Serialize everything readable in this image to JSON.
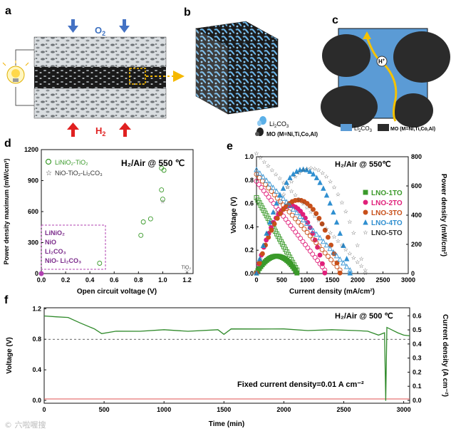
{
  "panels": {
    "a": {
      "label": "a",
      "o2_label": "O",
      "o2_sub": "2",
      "h2_label": "H",
      "h2_sub": "2"
    },
    "b": {
      "label": "b",
      "legend_li2co3": "Li",
      "legend_li2co3_sub1": "2",
      "legend_li2co3_mid": "CO",
      "legend_li2co3_sub2": "3",
      "legend_mo": "MO (M=Ni,Ti,Co,Al)"
    },
    "c": {
      "label": "c",
      "proton": "H",
      "proton_sup": "+",
      "legend_li2co3": "Li",
      "legend_li2co3_sub1": "2",
      "legend_li2co3_mid": "CO",
      "legend_li2co3_sub2": "3",
      "legend_mo": "MO (M=Ni,Ti,Co,Al)"
    },
    "d": {
      "label": "d"
    },
    "e": {
      "label": "e"
    },
    "f": {
      "label": "f"
    }
  },
  "colors": {
    "li2co3_blue": "#5b9bd5",
    "mo_dark": "#2b2b2b",
    "arrow_blue": "#4472c4",
    "arrow_red": "#e02020",
    "highlight_yellow": "#f5b800",
    "green": "#3a9a2a",
    "magenta": "#e0207a",
    "orange_brown": "#c8501a",
    "teal_blue": "#2f8fd0",
    "purple_box": "#b040b0"
  },
  "watermark": "© 六啦喔搜",
  "chart_data": [
    {
      "id": "d",
      "type": "scatter",
      "xlabel": "Open circuit voltage (V)",
      "ylabel": "Power density maximum (mW/cm²)",
      "annotation": "H₂/Air @ 550 ℃",
      "xlim": [
        0.0,
        1.25
      ],
      "ylim": [
        0,
        1200
      ],
      "xticks": [
        "0.0",
        "0.2",
        "0.4",
        "0.6",
        "0.8",
        "1.0",
        "1.2"
      ],
      "yticks": [
        "0",
        "300",
        "600",
        "900",
        "1200"
      ],
      "series": [
        {
          "name": "LiNiO₂-TiO₂",
          "marker": "circle",
          "color": "#3a9a2a",
          "points": [
            [
              0.48,
              100
            ],
            [
              0.82,
              370
            ],
            [
              0.84,
              500
            ],
            [
              0.9,
              530
            ],
            [
              0.99,
              810
            ],
            [
              0.99,
              1020
            ],
            [
              1.01,
              1000
            ],
            [
              1.0,
              720
            ]
          ]
        },
        {
          "name": "NiO-TiO₂-Li₂CO₃",
          "marker": "star",
          "color": "#333333",
          "points": [
            [
              1.0,
              700
            ]
          ]
        }
      ],
      "box_labels": [
        "LiNiO₂",
        "NiO",
        "Li₂CO₃",
        "NiO- Li₂CO₃"
      ],
      "box_point": [
        0.0,
        0
      ],
      "tio2_label": "TiO₂",
      "tio2_point": [
        1.2,
        5
      ]
    },
    {
      "id": "e",
      "type": "line",
      "annotation": "H₂/Air @ 550℃",
      "xlabel": "Current density (mA/cm²)",
      "ylabel": "Voltage (V)",
      "y2label": "Power density (mW/cm²)",
      "xlim": [
        0,
        3000
      ],
      "ylim": [
        0,
        1.0
      ],
      "y2lim": [
        0,
        800
      ],
      "xticks": [
        "0",
        "500",
        "1000",
        "1500",
        "2000",
        "2500",
        "3000"
      ],
      "yticks": [
        "0.0",
        "0.2",
        "0.4",
        "0.6",
        "0.8",
        "1.0"
      ],
      "y2ticks": [
        "0",
        "200",
        "400",
        "600",
        "800"
      ],
      "series": [
        {
          "name": "LNO-1TO",
          "color": "#3a9a2a",
          "marker": "square",
          "ocv": 0.62,
          "jmax": 800,
          "pmax": 120
        },
        {
          "name": "LNO-2TO",
          "color": "#e0207a",
          "marker": "circle",
          "ocv": 0.76,
          "jmax": 1350,
          "pmax": 480
        },
        {
          "name": "LNO-3TO",
          "color": "#c8501a",
          "marker": "circle",
          "ocv": 0.82,
          "jmax": 1650,
          "pmax": 520
        },
        {
          "name": "LNO-4TO",
          "color": "#2f8fd0",
          "marker": "triangle",
          "ocv": 0.86,
          "jmax": 1850,
          "pmax": 740
        },
        {
          "name": "LNO-5TO",
          "color": "#333333",
          "marker": "star",
          "ocv": 1.0,
          "jmax": 2150,
          "pmax": 750
        }
      ]
    },
    {
      "id": "f",
      "type": "line",
      "annotation": "H₂/Air @ 500 ℃",
      "footnote": "Fixed current density=0.01 A cm⁻²",
      "xlabel": "Time (min)",
      "ylabel": "Voltage (V)",
      "y2label": "Current density (A cm⁻²)",
      "xlim": [
        0,
        3050
      ],
      "ylim": [
        0,
        1.2
      ],
      "y2lim": [
        0,
        0.65
      ],
      "xticks": [
        "0",
        "500",
        "1000",
        "1500",
        "2000",
        "2500",
        "3000"
      ],
      "yticks": [
        "0.0",
        "0.4",
        "0.8",
        "1.2"
      ],
      "y2ticks": [
        "0.0",
        "0.1",
        "0.2",
        "0.3",
        "0.4",
        "0.5",
        "0.6"
      ],
      "voltage_points": [
        [
          0,
          1.1
        ],
        [
          100,
          1.1
        ],
        [
          200,
          1.08
        ],
        [
          300,
          1.02
        ],
        [
          420,
          0.93
        ],
        [
          480,
          0.88
        ],
        [
          600,
          0.9
        ],
        [
          800,
          0.91
        ],
        [
          1000,
          0.92
        ],
        [
          1200,
          0.91
        ],
        [
          1450,
          0.92
        ],
        [
          1500,
          0.87
        ],
        [
          1560,
          0.93
        ],
        [
          1800,
          0.94
        ],
        [
          2000,
          0.93
        ],
        [
          2200,
          0.92
        ],
        [
          2400,
          0.92
        ],
        [
          2600,
          0.92
        ],
        [
          2700,
          0.9
        ],
        [
          2790,
          0.86
        ],
        [
          2840,
          0.88
        ],
        [
          2850,
          0.0
        ],
        [
          2860,
          0.95
        ],
        [
          2900,
          0.93
        ],
        [
          2950,
          0.88
        ],
        [
          3000,
          0.86
        ],
        [
          3050,
          0.84
        ]
      ],
      "dashed_level": 0.8,
      "current_level": 0.01
    }
  ]
}
